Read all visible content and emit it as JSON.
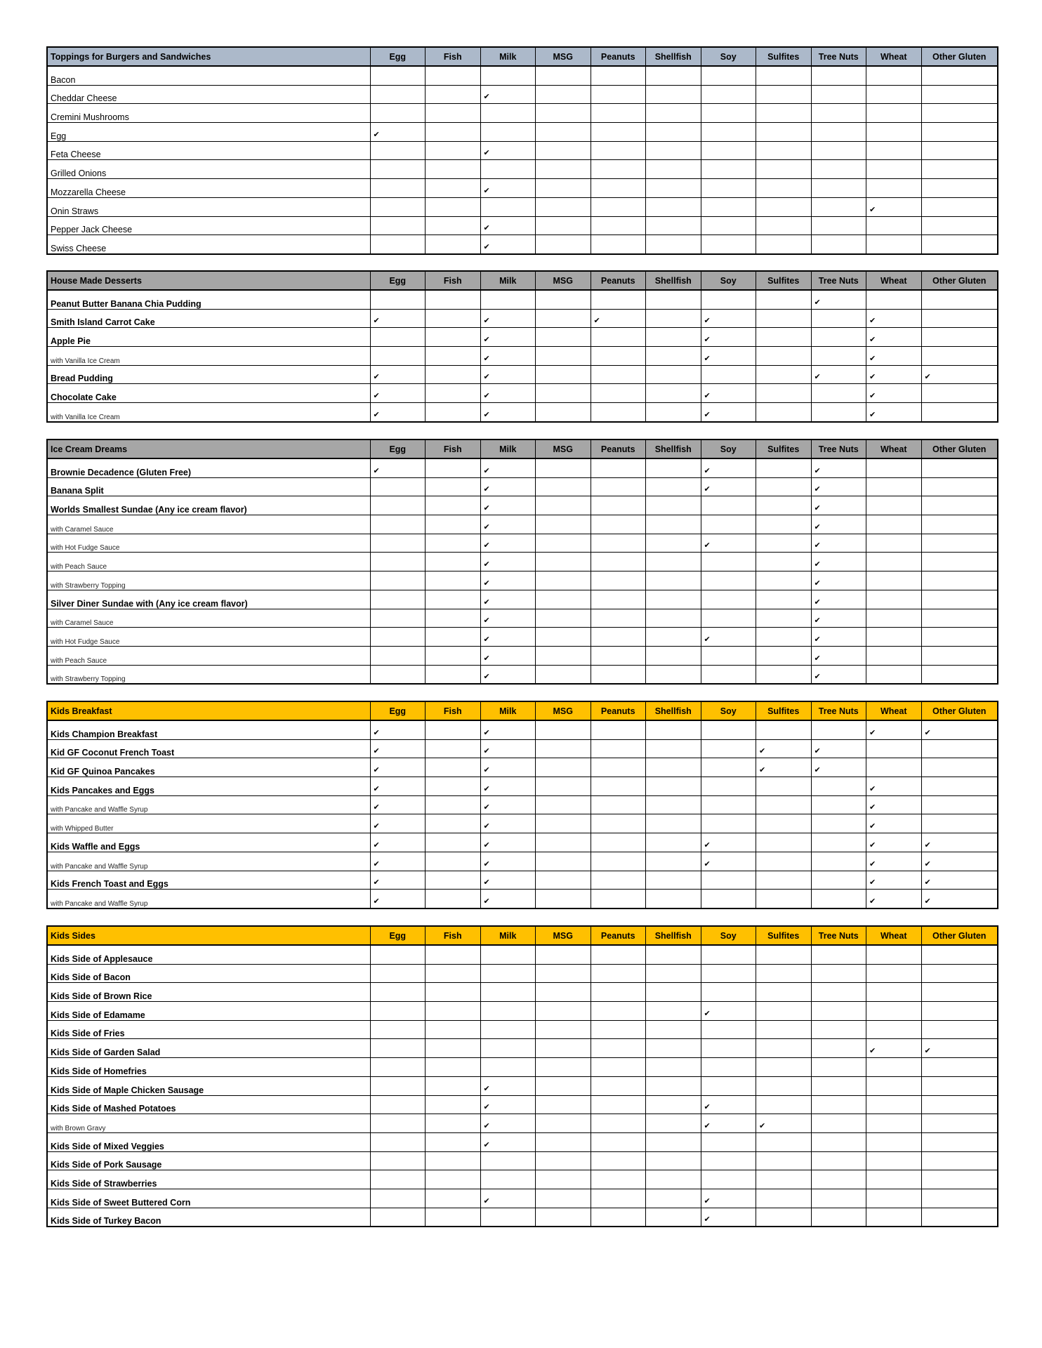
{
  "allergens": [
    "Egg",
    "Fish",
    "Milk",
    "MSG",
    "Peanuts",
    "Shellfish",
    "Soy",
    "Sulfites",
    "Tree Nuts",
    "Wheat",
    "Other Gluten"
  ],
  "check_icon": "✔",
  "tables": [
    {
      "title": "Toppings for Burgers and Sandwiches",
      "header_color": "#acb9ca",
      "rows": [
        {
          "name": "Bacon",
          "style": "plain",
          "checks": []
        },
        {
          "name": "Cheddar Cheese",
          "style": "plain",
          "checks": [
            "Milk"
          ]
        },
        {
          "name": "Cremini Mushrooms",
          "style": "plain",
          "checks": []
        },
        {
          "name": "Egg",
          "style": "plain",
          "checks": [
            "Egg"
          ]
        },
        {
          "name": "Feta Cheese",
          "style": "plain",
          "checks": [
            "Milk"
          ]
        },
        {
          "name": "Grilled Onions",
          "style": "plain",
          "checks": []
        },
        {
          "name": "Mozzarella Cheese",
          "style": "plain",
          "checks": [
            "Milk"
          ]
        },
        {
          "name": "Onin Straws",
          "style": "plain",
          "checks": [
            "Wheat"
          ]
        },
        {
          "name": "Pepper Jack Cheese",
          "style": "plain",
          "checks": [
            "Milk"
          ]
        },
        {
          "name": "Swiss Cheese",
          "style": "plain",
          "checks": [
            "Milk"
          ]
        }
      ]
    },
    {
      "title": "House Made Desserts",
      "header_color": "#a6a6a6",
      "rows": [
        {
          "name": "Peanut Butter Banana Chia Pudding",
          "style": "bold",
          "checks": [
            "Tree Nuts"
          ]
        },
        {
          "name": "Smith Island Carrot Cake",
          "style": "bold",
          "checks": [
            "Egg",
            "Milk",
            "Peanuts",
            "Soy",
            "Wheat"
          ]
        },
        {
          "name": "Apple Pie",
          "style": "bold",
          "checks": [
            "Milk",
            "Soy",
            "Wheat"
          ]
        },
        {
          "name": "with Vanilla Ice Cream",
          "style": "sub",
          "checks": [
            "Milk",
            "Soy",
            "Wheat"
          ]
        },
        {
          "name": "Bread Pudding",
          "style": "bold",
          "checks": [
            "Egg",
            "Milk",
            "Tree Nuts",
            "Wheat",
            "Other Gluten"
          ]
        },
        {
          "name": "Chocolate Cake",
          "style": "bold",
          "checks": [
            "Egg",
            "Milk",
            "Soy",
            "Wheat"
          ]
        },
        {
          "name": "with Vanilla Ice Cream",
          "style": "sub",
          "checks": [
            "Egg",
            "Milk",
            "Soy",
            "Wheat"
          ]
        }
      ]
    },
    {
      "title": "Ice Cream Dreams",
      "header_color": "#a6a6a6",
      "rows": [
        {
          "name": "Brownie Decadence (Gluten Free)",
          "style": "bold",
          "checks": [
            "Egg",
            "Milk",
            "Soy",
            "Tree Nuts"
          ]
        },
        {
          "name": "Banana Split",
          "style": "bold",
          "checks": [
            "Milk",
            "Soy",
            "Tree Nuts"
          ]
        },
        {
          "name": "Worlds Smallest Sundae (Any ice cream flavor)",
          "style": "bold",
          "checks": [
            "Milk",
            "Tree Nuts"
          ]
        },
        {
          "name": "with Caramel Sauce",
          "style": "sub",
          "checks": [
            "Milk",
            "Tree Nuts"
          ]
        },
        {
          "name": "with Hot Fudge Sauce",
          "style": "sub",
          "checks": [
            "Milk",
            "Soy",
            "Tree Nuts"
          ]
        },
        {
          "name": "with Peach Sauce",
          "style": "sub",
          "checks": [
            "Milk",
            "Tree Nuts"
          ]
        },
        {
          "name": "with Strawberry Topping",
          "style": "sub",
          "checks": [
            "Milk",
            "Tree Nuts"
          ]
        },
        {
          "name": "Silver Diner Sundae with (Any ice cream flavor)",
          "style": "bold",
          "checks": [
            "Milk",
            "Tree Nuts"
          ]
        },
        {
          "name": "with Caramel Sauce",
          "style": "sub",
          "checks": [
            "Milk",
            "Tree Nuts"
          ]
        },
        {
          "name": "with Hot Fudge Sauce",
          "style": "sub",
          "checks": [
            "Milk",
            "Soy",
            "Tree Nuts"
          ]
        },
        {
          "name": "with Peach Sauce",
          "style": "sub",
          "checks": [
            "Milk",
            "Tree Nuts"
          ]
        },
        {
          "name": "with Strawberry Topping",
          "style": "sub",
          "checks": [
            "Milk",
            "Tree Nuts"
          ]
        }
      ]
    },
    {
      "title": "Kids Breakfast",
      "header_color": "#ffc000",
      "rows": [
        {
          "name": "Kids Champion Breakfast",
          "style": "bold",
          "checks": [
            "Egg",
            "Milk",
            "Wheat",
            "Other Gluten"
          ]
        },
        {
          "name": "Kid GF Coconut French Toast",
          "style": "bold",
          "checks": [
            "Egg",
            "Milk",
            "Sulfites",
            "Tree Nuts"
          ]
        },
        {
          "name": "Kid GF Quinoa Pancakes",
          "style": "bold",
          "checks": [
            "Egg",
            "Milk",
            "Sulfites",
            "Tree Nuts"
          ]
        },
        {
          "name": "Kids Pancakes and Eggs",
          "style": "bold",
          "checks": [
            "Egg",
            "Milk",
            "Wheat"
          ]
        },
        {
          "name": "with Pancake and Waffle Syrup",
          "style": "sub",
          "checks": [
            "Egg",
            "Milk",
            "Wheat"
          ]
        },
        {
          "name": "with Whipped Butter",
          "style": "sub",
          "checks": [
            "Egg",
            "Milk",
            "Wheat"
          ]
        },
        {
          "name": "Kids Waffle and Eggs",
          "style": "bold",
          "checks": [
            "Egg",
            "Milk",
            "Soy",
            "Wheat",
            "Other Gluten"
          ]
        },
        {
          "name": "with Pancake and Waffle Syrup",
          "style": "sub",
          "checks": [
            "Egg",
            "Milk",
            "Soy",
            "Wheat",
            "Other Gluten"
          ]
        },
        {
          "name": "Kids French Toast and Eggs",
          "style": "bold",
          "checks": [
            "Egg",
            "Milk",
            "Wheat",
            "Other Gluten"
          ]
        },
        {
          "name": "with Pancake and Waffle Syrup",
          "style": "sub",
          "checks": [
            "Egg",
            "Milk",
            "Wheat",
            "Other Gluten"
          ]
        }
      ]
    },
    {
      "title": "Kids Sides",
      "header_color": "#ffc000",
      "rows": [
        {
          "name": "Kids Side of Applesauce",
          "style": "bold",
          "checks": []
        },
        {
          "name": "Kids Side of Bacon",
          "style": "bold",
          "checks": []
        },
        {
          "name": "Kids Side of Brown Rice",
          "style": "bold",
          "checks": []
        },
        {
          "name": "Kids Side of Edamame",
          "style": "bold",
          "checks": [
            "Soy"
          ]
        },
        {
          "name": "Kids Side of Fries",
          "style": "bold",
          "checks": []
        },
        {
          "name": "Kids Side of Garden Salad",
          "style": "bold",
          "checks": [
            "Wheat",
            "Other Gluten"
          ]
        },
        {
          "name": "Kids Side of Homefries",
          "style": "bold",
          "checks": []
        },
        {
          "name": "Kids Side of Maple Chicken Sausage",
          "style": "bold",
          "checks": [
            "Milk"
          ]
        },
        {
          "name": "Kids Side of Mashed Potatoes",
          "style": "bold",
          "checks": [
            "Milk",
            "Soy"
          ]
        },
        {
          "name": "with Brown Gravy",
          "style": "sub",
          "checks": [
            "Milk",
            "Soy",
            "Sulfites"
          ]
        },
        {
          "name": "Kids Side of Mixed Veggies",
          "style": "bold",
          "checks": [
            "Milk"
          ]
        },
        {
          "name": "Kids Side of Pork Sausage",
          "style": "bold",
          "checks": []
        },
        {
          "name": "Kids Side of Strawberries",
          "style": "bold",
          "checks": []
        },
        {
          "name": "Kids Side of Sweet Buttered Corn",
          "style": "bold",
          "checks": [
            "Milk",
            "Soy"
          ]
        },
        {
          "name": "Kids Side of Turkey Bacon",
          "style": "bold",
          "checks": [
            "Soy"
          ]
        }
      ]
    }
  ]
}
